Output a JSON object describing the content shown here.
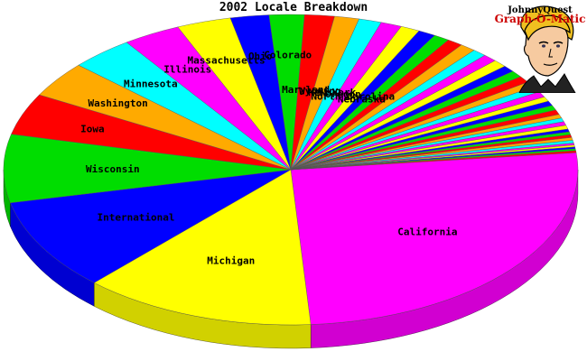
{
  "chart_data": {
    "type": "pie",
    "style": "3d",
    "title": "2002 Locale Breakdown",
    "slices": [
      {
        "label": "California",
        "value": 26.0,
        "color": "#ff00ff"
      },
      {
        "label": "Michigan",
        "value": 13.3,
        "color": "#ffff00"
      },
      {
        "label": "International",
        "value": 9.7,
        "color": "#0000ff"
      },
      {
        "label": "Wisconsin",
        "value": 7.2,
        "color": "#00dd00"
      },
      {
        "label": "Iowa",
        "value": 4.4,
        "color": "#ff0000"
      },
      {
        "label": "Washington",
        "value": 3.8,
        "color": "#ffaa00"
      },
      {
        "label": "Minnesota",
        "value": 3.6,
        "color": "#00ffff"
      },
      {
        "label": "Illinois",
        "value": 3.3,
        "color": "#ff00ff"
      },
      {
        "label": "Massachusetts",
        "value": 3.1,
        "color": "#ffff00"
      },
      {
        "label": "Ohio",
        "value": 2.2,
        "color": "#0000ff"
      },
      {
        "label": "Colorado",
        "value": 2.0,
        "color": "#00dd00"
      },
      {
        "label": "Maryland",
        "value": 1.7,
        "color": "#ff0000"
      },
      {
        "label": "Wyoming",
        "value": 1.4,
        "color": "#ffaa00"
      },
      {
        "label": "New York",
        "value": 1.3,
        "color": "#00ffff"
      },
      {
        "label": "Oregon",
        "value": 1.2,
        "color": "#ff00ff"
      },
      {
        "label": "North Carolina",
        "value": 1.1,
        "color": "#ffff00"
      },
      {
        "label": "Nebraska",
        "value": 1.0,
        "color": "#0000ff"
      },
      {
        "label": "",
        "value": 0.9,
        "color": "#00dd00"
      },
      {
        "label": "",
        "value": 0.9,
        "color": "#ff0000"
      },
      {
        "label": "",
        "value": 0.9,
        "color": "#ffaa00"
      },
      {
        "label": "",
        "value": 0.8,
        "color": "#00ffff"
      },
      {
        "label": "",
        "value": 0.8,
        "color": "#ff00ff"
      },
      {
        "label": "",
        "value": 0.8,
        "color": "#ffff00"
      },
      {
        "label": "",
        "value": 0.7,
        "color": "#0000ff"
      },
      {
        "label": "",
        "value": 0.7,
        "color": "#00dd00"
      },
      {
        "label": "",
        "value": 0.7,
        "color": "#ff0000"
      },
      {
        "label": "",
        "value": 0.6,
        "color": "#ffaa00"
      },
      {
        "label": "",
        "value": 0.6,
        "color": "#00ffff"
      },
      {
        "label": "",
        "value": 0.6,
        "color": "#ff00ff"
      },
      {
        "label": "",
        "value": 0.5,
        "color": "#ffff00"
      },
      {
        "label": "",
        "value": 0.5,
        "color": "#0000ff"
      },
      {
        "label": "",
        "value": 0.5,
        "color": "#00dd00"
      },
      {
        "label": "",
        "value": 0.5,
        "color": "#ff0000"
      },
      {
        "label": "",
        "value": 0.4,
        "color": "#ffaa00"
      },
      {
        "label": "",
        "value": 0.4,
        "color": "#00ffff"
      },
      {
        "label": "",
        "value": 0.4,
        "color": "#ff00ff"
      },
      {
        "label": "",
        "value": 0.4,
        "color": "#ffff00"
      },
      {
        "label": "",
        "value": 0.3,
        "color": "#0000ff"
      },
      {
        "label": "",
        "value": 0.3,
        "color": "#00dd00"
      },
      {
        "label": "",
        "value": 0.3,
        "color": "#ff0000"
      },
      {
        "label": "",
        "value": 0.3,
        "color": "#ffaa00"
      },
      {
        "label": "",
        "value": 0.3,
        "color": "#00ffff"
      },
      {
        "label": "",
        "value": 0.2,
        "color": "#ff00ff"
      },
      {
        "label": "",
        "value": 0.2,
        "color": "#ffff00"
      },
      {
        "label": "",
        "value": 0.2,
        "color": "#0000ff"
      },
      {
        "label": "",
        "value": 0.2,
        "color": "#00dd00"
      },
      {
        "label": "",
        "value": 0.2,
        "color": "#ff0000"
      }
    ]
  },
  "logo": {
    "line1": "JohnnyQuest",
    "line2": "Graph-O-Matic"
  }
}
